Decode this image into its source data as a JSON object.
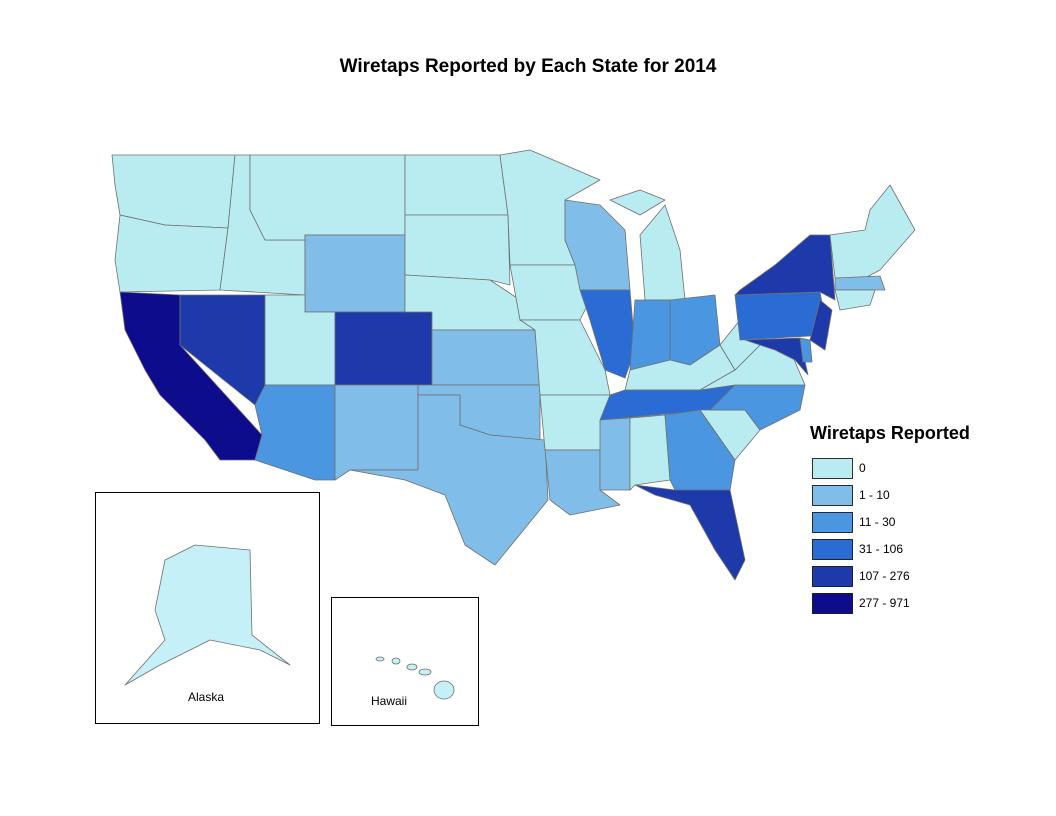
{
  "title": "Wiretaps Reported by Each State for 2014",
  "legend": {
    "title": "Wiretaps Reported",
    "classes": [
      {
        "label": "0",
        "color": "#b8ecf0"
      },
      {
        "label": "1 - 10",
        "color": "#80bde8"
      },
      {
        "label": "11 - 30",
        "color": "#4a96e0"
      },
      {
        "label": "31 - 106",
        "color": "#2a6cd4"
      },
      {
        "label": "107 - 276",
        "color": "#1e3aaa"
      },
      {
        "label": "277 - 971",
        "color": "#0c0c8c"
      }
    ]
  },
  "insets": [
    {
      "label": "Alaska"
    },
    {
      "label": "Hawaii"
    }
  ]
}
